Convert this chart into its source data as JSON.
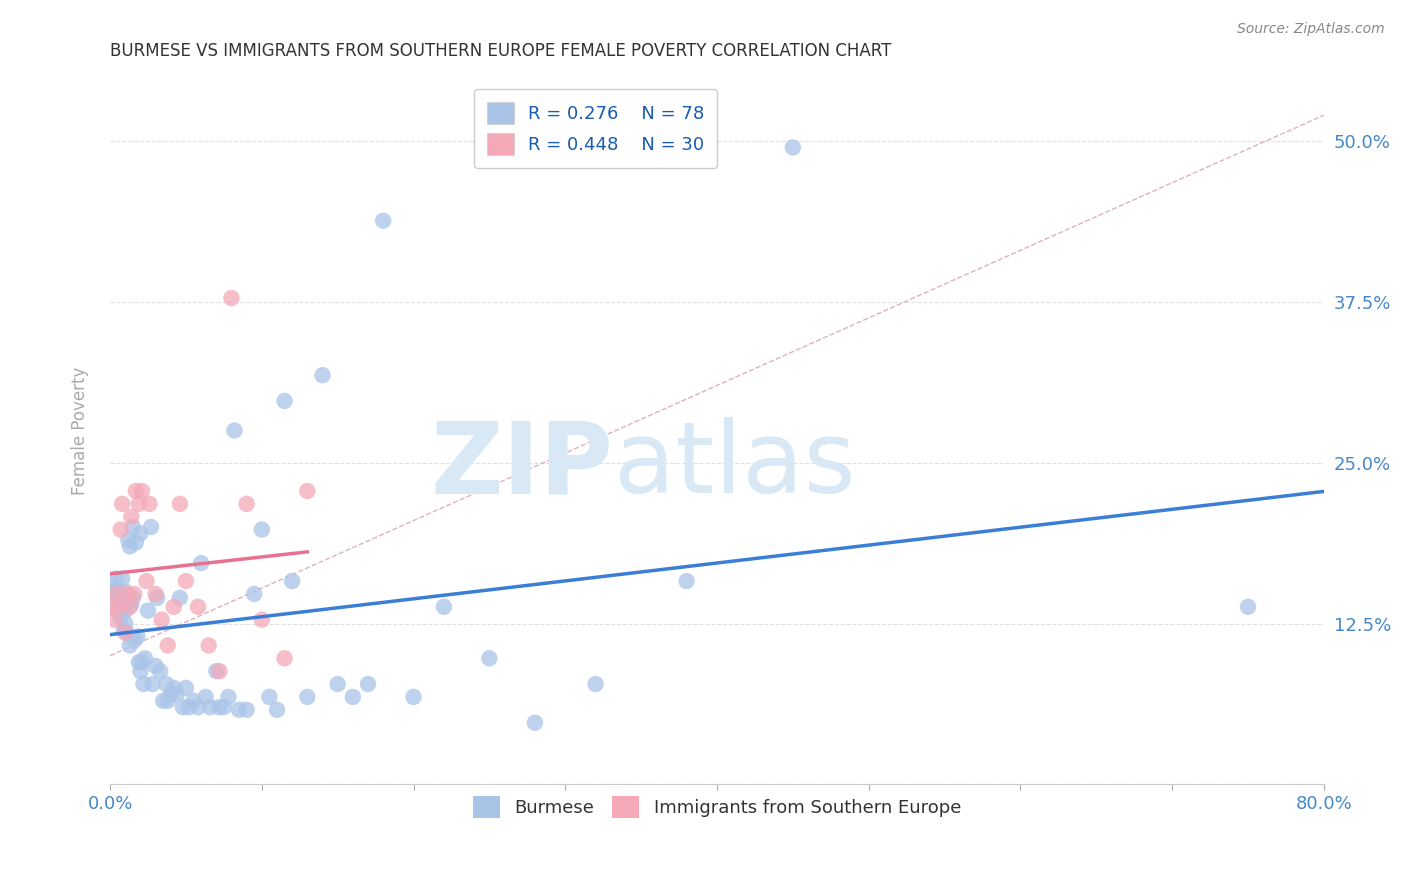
{
  "title": "BURMESE VS IMMIGRANTS FROM SOUTHERN EUROPE FEMALE POVERTY CORRELATION CHART",
  "source": "Source: ZipAtlas.com",
  "ylabel": "Female Poverty",
  "watermark": "ZIPatlas",
  "x_min": 0.0,
  "x_max": 0.8,
  "y_min": 0.0,
  "y_max": 0.55,
  "x_ticks": [
    0.0,
    0.1,
    0.2,
    0.3,
    0.4,
    0.5,
    0.6,
    0.7,
    0.8
  ],
  "y_ticks": [
    0.0,
    0.125,
    0.25,
    0.375,
    0.5
  ],
  "y_tick_labels": [
    "",
    "12.5%",
    "25.0%",
    "37.5%",
    "50.0%"
  ],
  "legend_r1": "R = 0.276",
  "legend_n1": "N = 78",
  "legend_r2": "R = 0.448",
  "legend_n2": "N = 30",
  "color_burmese": "#aac4e8",
  "color_southern_europe": "#f4a8b8",
  "color_line_burmese": "#3a7fd5",
  "color_line_southern": "#e87090",
  "color_diagonal_dashed": "#e0b0c0",
  "color_grid": "#e0e0e0",
  "color_watermark": "#d8e8f5",
  "color_title": "#333333",
  "color_source": "#888888",
  "color_tick_label": "#4488cc",
  "burmese_x": [
    0.001,
    0.002,
    0.003,
    0.004,
    0.005,
    0.005,
    0.006,
    0.007,
    0.008,
    0.008,
    0.009,
    0.01,
    0.01,
    0.01,
    0.011,
    0.012,
    0.013,
    0.013,
    0.014,
    0.015,
    0.015,
    0.016,
    0.017,
    0.018,
    0.019,
    0.02,
    0.02,
    0.021,
    0.022,
    0.023,
    0.025,
    0.027,
    0.028,
    0.03,
    0.031,
    0.033,
    0.035,
    0.037,
    0.038,
    0.04,
    0.042,
    0.044,
    0.046,
    0.048,
    0.05,
    0.052,
    0.055,
    0.058,
    0.06,
    0.063,
    0.066,
    0.07,
    0.072,
    0.075,
    0.078,
    0.082,
    0.085,
    0.09,
    0.095,
    0.1,
    0.105,
    0.11,
    0.115,
    0.12,
    0.13,
    0.14,
    0.15,
    0.16,
    0.17,
    0.18,
    0.2,
    0.22,
    0.25,
    0.28,
    0.32,
    0.38,
    0.45,
    0.75
  ],
  "burmese_y": [
    0.155,
    0.145,
    0.15,
    0.16,
    0.135,
    0.15,
    0.145,
    0.13,
    0.148,
    0.16,
    0.12,
    0.125,
    0.135,
    0.15,
    0.118,
    0.19,
    0.108,
    0.185,
    0.14,
    0.145,
    0.2,
    0.112,
    0.188,
    0.115,
    0.095,
    0.088,
    0.195,
    0.095,
    0.078,
    0.098,
    0.135,
    0.2,
    0.078,
    0.092,
    0.145,
    0.088,
    0.065,
    0.078,
    0.065,
    0.07,
    0.075,
    0.07,
    0.145,
    0.06,
    0.075,
    0.06,
    0.065,
    0.06,
    0.172,
    0.068,
    0.06,
    0.088,
    0.06,
    0.06,
    0.068,
    0.275,
    0.058,
    0.058,
    0.148,
    0.198,
    0.068,
    0.058,
    0.298,
    0.158,
    0.068,
    0.318,
    0.078,
    0.068,
    0.078,
    0.438,
    0.068,
    0.138,
    0.098,
    0.048,
    0.078,
    0.158,
    0.495,
    0.138
  ],
  "southern_x": [
    0.001,
    0.003,
    0.004,
    0.006,
    0.007,
    0.008,
    0.01,
    0.011,
    0.013,
    0.014,
    0.016,
    0.017,
    0.019,
    0.021,
    0.024,
    0.026,
    0.03,
    0.034,
    0.038,
    0.042,
    0.046,
    0.05,
    0.058,
    0.065,
    0.072,
    0.08,
    0.09,
    0.1,
    0.115,
    0.13
  ],
  "southern_y": [
    0.138,
    0.128,
    0.148,
    0.138,
    0.198,
    0.218,
    0.118,
    0.148,
    0.138,
    0.208,
    0.148,
    0.228,
    0.218,
    0.228,
    0.158,
    0.218,
    0.148,
    0.128,
    0.108,
    0.138,
    0.218,
    0.158,
    0.138,
    0.108,
    0.088,
    0.378,
    0.218,
    0.128,
    0.098,
    0.228
  ]
}
